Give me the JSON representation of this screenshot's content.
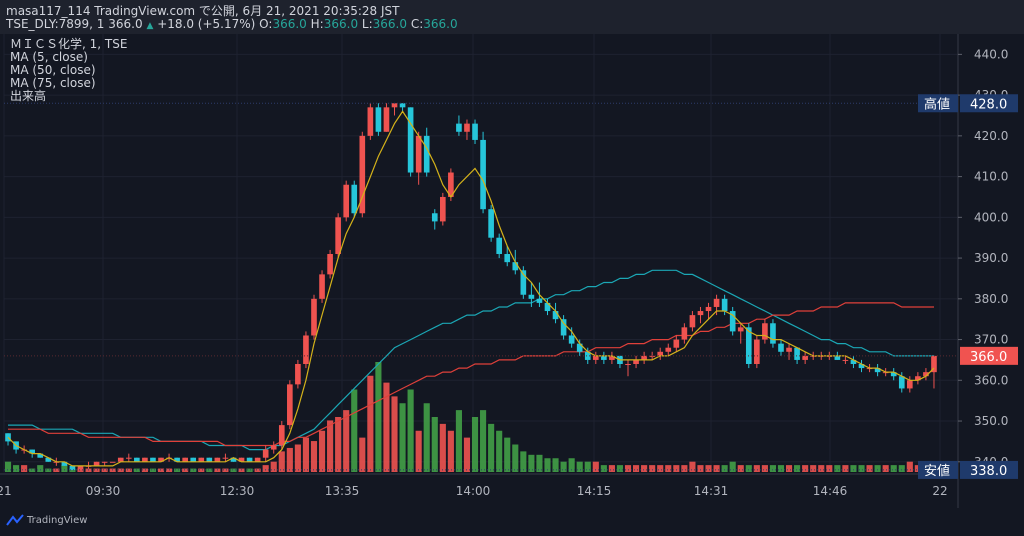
{
  "header": {
    "line1": "masa117_114 TradingView.com で公開, 6月 21, 2021 20:35:28 JST",
    "line2_prefix": "TSE_DLY:7899, 1  366.0",
    "change": "+18.0 (+5.17%)",
    "o_label": "O:",
    "o_val": "366.0",
    "h_label": "H:",
    "h_val": "366.0",
    "l_label": "L:",
    "l_val": "366.0",
    "c_label": "C:",
    "c_val": "366.0"
  },
  "legend": [
    "ＭＩＣＳ化学, 1, TSE",
    "MA (5, close)",
    "MA (50, close)",
    "MA (75, close)",
    "出来高"
  ],
  "footer": {
    "brand": "TradingView"
  },
  "colors": {
    "up": "#ef5350",
    "down": "#26c6da",
    "vol_up": "#ef5350",
    "vol_down": "#43a047",
    "ma5": "#d4b21a",
    "ma50": "#e0403a",
    "ma75": "#1ba7b5",
    "price_tag": "#f05350",
    "hl_tag": "#1f3a6b",
    "bg": "#131722"
  },
  "chart_data": {
    "type": "candlestick",
    "symbol": "ＭＩＣＳ化学",
    "exchange": "TSE",
    "ylim": [
      337,
      445
    ],
    "yticks": [
      440,
      430,
      420,
      410,
      400,
      390,
      380,
      370,
      360,
      350,
      340
    ],
    "xticks": [
      "21",
      "09:30",
      "12:30",
      "13:35",
      "14:00",
      "14:15",
      "14:31",
      "14:46",
      "22"
    ],
    "price_label": "366.0",
    "high": {
      "label": "高値",
      "value": 428.0
    },
    "low": {
      "label": "安値",
      "value": 338.0
    },
    "ohlc": [
      [
        347,
        347,
        344,
        345
      ],
      [
        345,
        345,
        342,
        343
      ],
      [
        343,
        344,
        342,
        343
      ],
      [
        343,
        343,
        341,
        342
      ],
      [
        342,
        342,
        341,
        341
      ],
      [
        341,
        341,
        340,
        340
      ],
      [
        340,
        341,
        339,
        340
      ],
      [
        340,
        340,
        339,
        339
      ],
      [
        339,
        339,
        338,
        338
      ],
      [
        338,
        339,
        338,
        339
      ],
      [
        339,
        340,
        338,
        339
      ],
      [
        339,
        340,
        339,
        340
      ],
      [
        340,
        340,
        339,
        340
      ],
      [
        340,
        340,
        340,
        340
      ],
      [
        340,
        341,
        340,
        341
      ],
      [
        341,
        342,
        340,
        341
      ],
      [
        341,
        341,
        340,
        340
      ],
      [
        340,
        341,
        340,
        341
      ],
      [
        341,
        341,
        340,
        340
      ],
      [
        340,
        341,
        340,
        341
      ],
      [
        341,
        342,
        340,
        341
      ],
      [
        341,
        341,
        340,
        340
      ],
      [
        340,
        341,
        340,
        341
      ],
      [
        341,
        341,
        340,
        340
      ],
      [
        340,
        341,
        340,
        341
      ],
      [
        341,
        341,
        340,
        340
      ],
      [
        340,
        341,
        340,
        341
      ],
      [
        341,
        342,
        340,
        341
      ],
      [
        341,
        341,
        340,
        340
      ],
      [
        340,
        341,
        340,
        341
      ],
      [
        341,
        341,
        340,
        340
      ],
      [
        340,
        341,
        340,
        341
      ],
      [
        341,
        344,
        340,
        343
      ],
      [
        343,
        345,
        342,
        344
      ],
      [
        344,
        350,
        343,
        349
      ],
      [
        349,
        360,
        348,
        359
      ],
      [
        359,
        365,
        358,
        364
      ],
      [
        364,
        372,
        363,
        371
      ],
      [
        371,
        381,
        370,
        380
      ],
      [
        380,
        387,
        379,
        386
      ],
      [
        386,
        392,
        385,
        391
      ],
      [
        391,
        401,
        390,
        400
      ],
      [
        400,
        409,
        399,
        408
      ],
      [
        408,
        409,
        400,
        401
      ],
      [
        401,
        421,
        400,
        420
      ],
      [
        420,
        428,
        419,
        427
      ],
      [
        427,
        428,
        420,
        421
      ],
      [
        421,
        428,
        421,
        427
      ],
      [
        427,
        428,
        425,
        428
      ],
      [
        428,
        428,
        426,
        427
      ],
      [
        427,
        427,
        410,
        411
      ],
      [
        411,
        421,
        408,
        420
      ],
      [
        420,
        422,
        410,
        411
      ],
      [
        401,
        402,
        397,
        399
      ],
      [
        399,
        406,
        398,
        405
      ],
      [
        405,
        412,
        404,
        411
      ],
      [
        423,
        425,
        420,
        421
      ],
      [
        421,
        424,
        419,
        423
      ],
      [
        423,
        424,
        418,
        419
      ],
      [
        419,
        421,
        401,
        402
      ],
      [
        402,
        403,
        394,
        395
      ],
      [
        395,
        396,
        390,
        391
      ],
      [
        391,
        393,
        388,
        389
      ],
      [
        389,
        392,
        386,
        387
      ],
      [
        387,
        388,
        380,
        381
      ],
      [
        381,
        384,
        378,
        380
      ],
      [
        380,
        384,
        378,
        379
      ],
      [
        379,
        380,
        376,
        377
      ],
      [
        377,
        379,
        374,
        375
      ],
      [
        375,
        376,
        370,
        371
      ],
      [
        371,
        373,
        368,
        369
      ],
      [
        369,
        370,
        366,
        367
      ],
      [
        367,
        368,
        364,
        365
      ],
      [
        365,
        367,
        364,
        366
      ],
      [
        366,
        367,
        364,
        365
      ],
      [
        365,
        367,
        364,
        366
      ],
      [
        366,
        366,
        363,
        364
      ],
      [
        364,
        365,
        361,
        364
      ],
      [
        364,
        366,
        363,
        365
      ],
      [
        365,
        367,
        364,
        366
      ],
      [
        366,
        367,
        365,
        366
      ],
      [
        366,
        368,
        365,
        367
      ],
      [
        367,
        369,
        366,
        368
      ],
      [
        368,
        371,
        367,
        370
      ],
      [
        370,
        374,
        369,
        373
      ],
      [
        373,
        377,
        372,
        376
      ],
      [
        376,
        378,
        374,
        377
      ],
      [
        377,
        379,
        375,
        378
      ],
      [
        378,
        381,
        376,
        380
      ],
      [
        380,
        381,
        376,
        377
      ],
      [
        377,
        378,
        371,
        372
      ],
      [
        372,
        374,
        369,
        373
      ],
      [
        373,
        374,
        363,
        364
      ],
      [
        364,
        371,
        363,
        370
      ],
      [
        370,
        375,
        369,
        374
      ],
      [
        374,
        375,
        368,
        369
      ],
      [
        369,
        370,
        366,
        367
      ],
      [
        367,
        369,
        365,
        368
      ],
      [
        368,
        368,
        364,
        365
      ],
      [
        365,
        367,
        364,
        366
      ],
      [
        366,
        367,
        365,
        366
      ],
      [
        366,
        367,
        365,
        366
      ],
      [
        366,
        367,
        365,
        366
      ],
      [
        366,
        367,
        365,
        365
      ],
      [
        365,
        366,
        364,
        365
      ],
      [
        365,
        366,
        363,
        364
      ],
      [
        364,
        365,
        362,
        363
      ],
      [
        363,
        364,
        362,
        363
      ],
      [
        363,
        364,
        361,
        362
      ],
      [
        362,
        363,
        361,
        362
      ],
      [
        362,
        363,
        360,
        361
      ],
      [
        361,
        362,
        357,
        358
      ],
      [
        358,
        361,
        357,
        360
      ],
      [
        360,
        362,
        359,
        361
      ],
      [
        361,
        363,
        360,
        362
      ],
      [
        362,
        366,
        358,
        366
      ]
    ],
    "volume": [
      3,
      2,
      2,
      1,
      2,
      1,
      1,
      2,
      1,
      1,
      1,
      1,
      1,
      1,
      1,
      1,
      1,
      1,
      1,
      1,
      1,
      1,
      1,
      1,
      1,
      1,
      1,
      1,
      1,
      1,
      1,
      1,
      2,
      3,
      6,
      7,
      8,
      10,
      9,
      12,
      15,
      16,
      18,
      24,
      10,
      28,
      32,
      26,
      22,
      20,
      24,
      12,
      20,
      16,
      14,
      12,
      18,
      10,
      16,
      18,
      14,
      12,
      10,
      8,
      6,
      5,
      5,
      4,
      4,
      3,
      4,
      3,
      3,
      3,
      2,
      2,
      2,
      2,
      2,
      2,
      2,
      2,
      2,
      2,
      2,
      3,
      2,
      2,
      2,
      2,
      3,
      2,
      2,
      2,
      2,
      2,
      2,
      2,
      2,
      2,
      2,
      2,
      2,
      2,
      2,
      2,
      2,
      2,
      2,
      2,
      2,
      2,
      3,
      2,
      1
    ],
    "ma5": [
      346,
      344,
      343,
      342,
      342,
      341,
      340,
      340,
      339,
      339,
      339,
      339,
      339,
      339,
      340,
      340,
      340,
      340,
      340,
      340,
      341,
      340,
      340,
      340,
      340,
      340,
      340,
      340,
      341,
      340,
      340,
      340,
      340,
      341,
      343,
      347,
      353,
      360,
      369,
      376,
      383,
      390,
      396,
      400,
      405,
      410,
      415,
      419,
      423,
      426,
      423,
      420,
      417,
      413,
      408,
      405,
      408,
      410,
      412,
      409,
      404,
      398,
      393,
      389,
      386,
      384,
      381,
      379,
      377,
      374,
      372,
      369,
      367,
      366,
      366,
      366,
      365,
      365,
      365,
      365,
      365,
      366,
      366,
      367,
      368,
      371,
      373,
      375,
      377,
      377,
      376,
      374,
      372,
      371,
      371,
      370,
      370,
      369,
      368,
      367,
      366,
      366,
      366,
      366,
      366,
      365,
      364,
      363,
      363,
      362,
      362,
      361,
      360,
      360,
      361,
      363
    ],
    "ma50": [
      348,
      348,
      348,
      348,
      348,
      347,
      347,
      347,
      347,
      347,
      346,
      346,
      346,
      346,
      346,
      346,
      346,
      346,
      345,
      345,
      345,
      345,
      345,
      345,
      345,
      345,
      345,
      344,
      344,
      344,
      344,
      344,
      344,
      344,
      345,
      345,
      346,
      346,
      347,
      348,
      349,
      350,
      351,
      352,
      353,
      354,
      355,
      356,
      357,
      358,
      359,
      360,
      361,
      361,
      362,
      362,
      363,
      363,
      364,
      364,
      364,
      365,
      365,
      365,
      366,
      366,
      366,
      366,
      366,
      367,
      367,
      367,
      367,
      368,
      368,
      368,
      368,
      369,
      369,
      369,
      370,
      370,
      370,
      371,
      371,
      371,
      372,
      372,
      373,
      373,
      374,
      374,
      374,
      375,
      375,
      376,
      376,
      376,
      377,
      377,
      377,
      378,
      378,
      378,
      379,
      379,
      379,
      379,
      379,
      379,
      379,
      378,
      378,
      378,
      378,
      378
    ],
    "ma75": [
      349,
      349,
      349,
      349,
      348,
      348,
      348,
      348,
      348,
      347,
      347,
      347,
      347,
      347,
      346,
      346,
      346,
      346,
      346,
      345,
      345,
      345,
      345,
      345,
      345,
      344,
      344,
      344,
      344,
      344,
      343,
      343,
      343,
      344,
      344,
      345,
      346,
      347,
      348,
      350,
      352,
      354,
      356,
      358,
      360,
      362,
      364,
      366,
      368,
      369,
      370,
      371,
      372,
      373,
      374,
      374,
      375,
      376,
      376,
      377,
      377,
      378,
      378,
      379,
      379,
      379,
      380,
      380,
      381,
      381,
      382,
      382,
      383,
      383,
      384,
      384,
      385,
      385,
      386,
      386,
      387,
      387,
      387,
      387,
      386,
      386,
      385,
      384,
      383,
      382,
      381,
      380,
      379,
      378,
      377,
      376,
      375,
      374,
      373,
      372,
      371,
      370,
      370,
      369,
      369,
      368,
      368,
      367,
      367,
      367,
      366,
      366,
      366,
      366,
      366,
      366
    ]
  }
}
